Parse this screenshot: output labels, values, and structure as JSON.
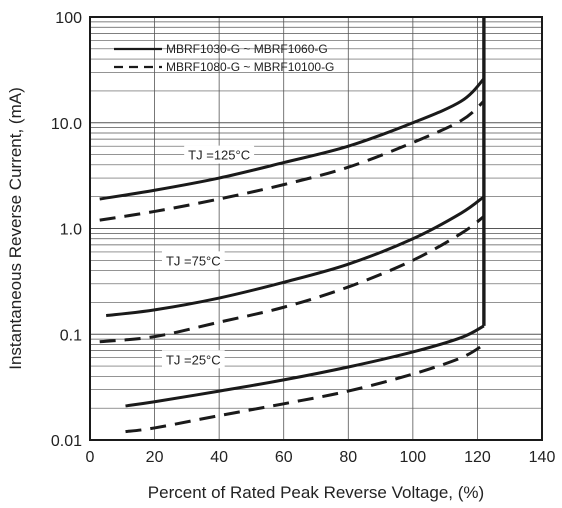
{
  "chart_data": {
    "type": "line",
    "xlabel": "Percent of Rated Peak Reverse Voltage, (%)",
    "ylabel": "Instantaneous Reverse Current, (mA)",
    "xlim": [
      0,
      140
    ],
    "ylim": [
      0.01,
      100
    ],
    "yscale": "log",
    "grid": true,
    "x_ticks": [
      0,
      20,
      40,
      60,
      80,
      100,
      120,
      140
    ],
    "x_tick_labels": [
      "0",
      "20",
      "40",
      "60",
      "80",
      "100",
      "120",
      "140"
    ],
    "y_ticks": [
      0.01,
      0.1,
      1.0,
      10.0,
      100
    ],
    "y_tick_labels": [
      "0.01",
      "0.1",
      "1.0",
      "10.0",
      "100"
    ],
    "legend": {
      "placement": "top-left",
      "entries": [
        {
          "label": "MBRF1030-G ~ MBRF1060-G",
          "style": "solid"
        },
        {
          "label": "MBRF1080-G ~ MBRF10100-G",
          "style": "dashed"
        }
      ]
    },
    "annotations": [
      {
        "text": "TJ =125°C",
        "x": 40,
        "y": 5.0
      },
      {
        "text": "TJ =75°C",
        "x": 32,
        "y": 0.5
      },
      {
        "text": "TJ =25°C",
        "x": 32,
        "y": 0.058
      }
    ],
    "series": [
      {
        "group": "125",
        "style": "solid",
        "x": [
          3,
          20,
          40,
          60,
          80,
          100,
          115,
          122
        ],
        "y": [
          1.9,
          2.3,
          3.0,
          4.2,
          6.0,
          10.0,
          16.0,
          26.0
        ]
      },
      {
        "group": "125",
        "style": "dashed",
        "x": [
          3,
          20,
          40,
          60,
          80,
          100,
          115,
          122
        ],
        "y": [
          1.2,
          1.45,
          1.9,
          2.6,
          3.8,
          6.5,
          10.5,
          16.0
        ]
      },
      {
        "group": "75",
        "style": "solid",
        "x": [
          5,
          20,
          40,
          60,
          80,
          100,
          115,
          122
        ],
        "y": [
          0.15,
          0.17,
          0.22,
          0.31,
          0.46,
          0.8,
          1.4,
          2.0
        ]
      },
      {
        "group": "75",
        "style": "dashed",
        "x": [
          3,
          20,
          40,
          60,
          80,
          100,
          115,
          122
        ],
        "y": [
          0.085,
          0.095,
          0.13,
          0.18,
          0.28,
          0.5,
          0.9,
          1.3
        ]
      },
      {
        "group": "25",
        "style": "solid",
        "x": [
          11,
          20,
          40,
          60,
          80,
          100,
          115,
          122
        ],
        "y": [
          0.021,
          0.023,
          0.029,
          0.037,
          0.049,
          0.068,
          0.093,
          0.12
        ]
      },
      {
        "group": "25",
        "style": "dashed",
        "x": [
          11,
          20,
          40,
          60,
          80,
          100,
          115,
          122
        ],
        "y": [
          0.012,
          0.013,
          0.017,
          0.022,
          0.029,
          0.042,
          0.06,
          0.08
        ]
      },
      {
        "group": "limit",
        "style": "solid",
        "x": [
          122,
          122
        ],
        "y": [
          0.12,
          100
        ]
      }
    ],
    "colors": {
      "line": "#1a1a1a",
      "grid": "#555555",
      "axis": "#1a1a1a",
      "background": "#ffffff"
    }
  }
}
